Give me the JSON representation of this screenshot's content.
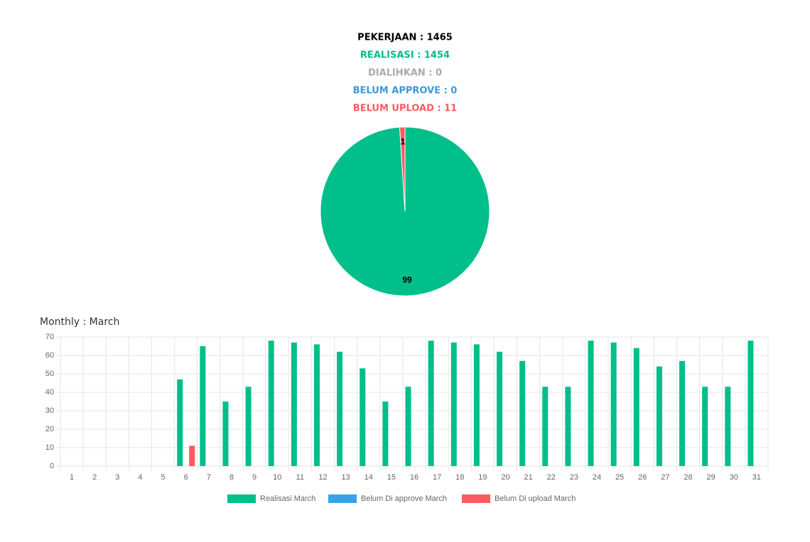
{
  "summary": [
    "PEKERJAAN : 1465",
    "REALISASI : 1454",
    "DIALIHKAN : 0",
    "BELUM APPROVE : 0",
    "BELUM UPLOAD : 11"
  ],
  "chart_data": [
    {
      "type": "pie",
      "values": [
        99,
        1
      ],
      "colors": [
        "#00bf8a",
        "#ff5a5e"
      ]
    },
    {
      "type": "bar",
      "title": "Monthly : March",
      "categories": [
        "1",
        "2",
        "3",
        "4",
        "5",
        "6",
        "7",
        "8",
        "9",
        "10",
        "11",
        "12",
        "13",
        "14",
        "15",
        "16",
        "17",
        "18",
        "19",
        "20",
        "21",
        "22",
        "23",
        "24",
        "25",
        "26",
        "27",
        "28",
        "29",
        "30",
        "31"
      ],
      "series": [
        {
          "name": "Realisasi March",
          "color": "#00bf8a",
          "values": [
            0,
            0,
            0,
            0,
            0,
            47,
            65,
            35,
            43,
            68,
            67,
            66,
            62,
            53,
            35,
            43,
            68,
            67,
            66,
            62,
            57,
            43,
            43,
            68,
            67,
            64,
            54,
            57,
            43,
            43,
            68
          ]
        },
        {
          "name": "Belum Di approve March",
          "color": "#36a2eb",
          "values": [
            0,
            0,
            0,
            0,
            0,
            0,
            0,
            0,
            0,
            0,
            0,
            0,
            0,
            0,
            0,
            0,
            0,
            0,
            0,
            0,
            0,
            0,
            0,
            0,
            0,
            0,
            0,
            0,
            0,
            0,
            0
          ]
        },
        {
          "name": "Belum Di upload March",
          "color": "#ff5a5e",
          "values": [
            0,
            0,
            0,
            0,
            0,
            11,
            0,
            0,
            0,
            0,
            0,
            0,
            0,
            0,
            0,
            0,
            0,
            0,
            0,
            0,
            0,
            0,
            0,
            0,
            0,
            0,
            0,
            0,
            0,
            0,
            0
          ]
        }
      ],
      "ylim": [
        0,
        70
      ],
      "yticks": [
        0,
        10,
        20,
        30,
        40,
        50,
        60,
        70
      ],
      "grid": true
    }
  ]
}
